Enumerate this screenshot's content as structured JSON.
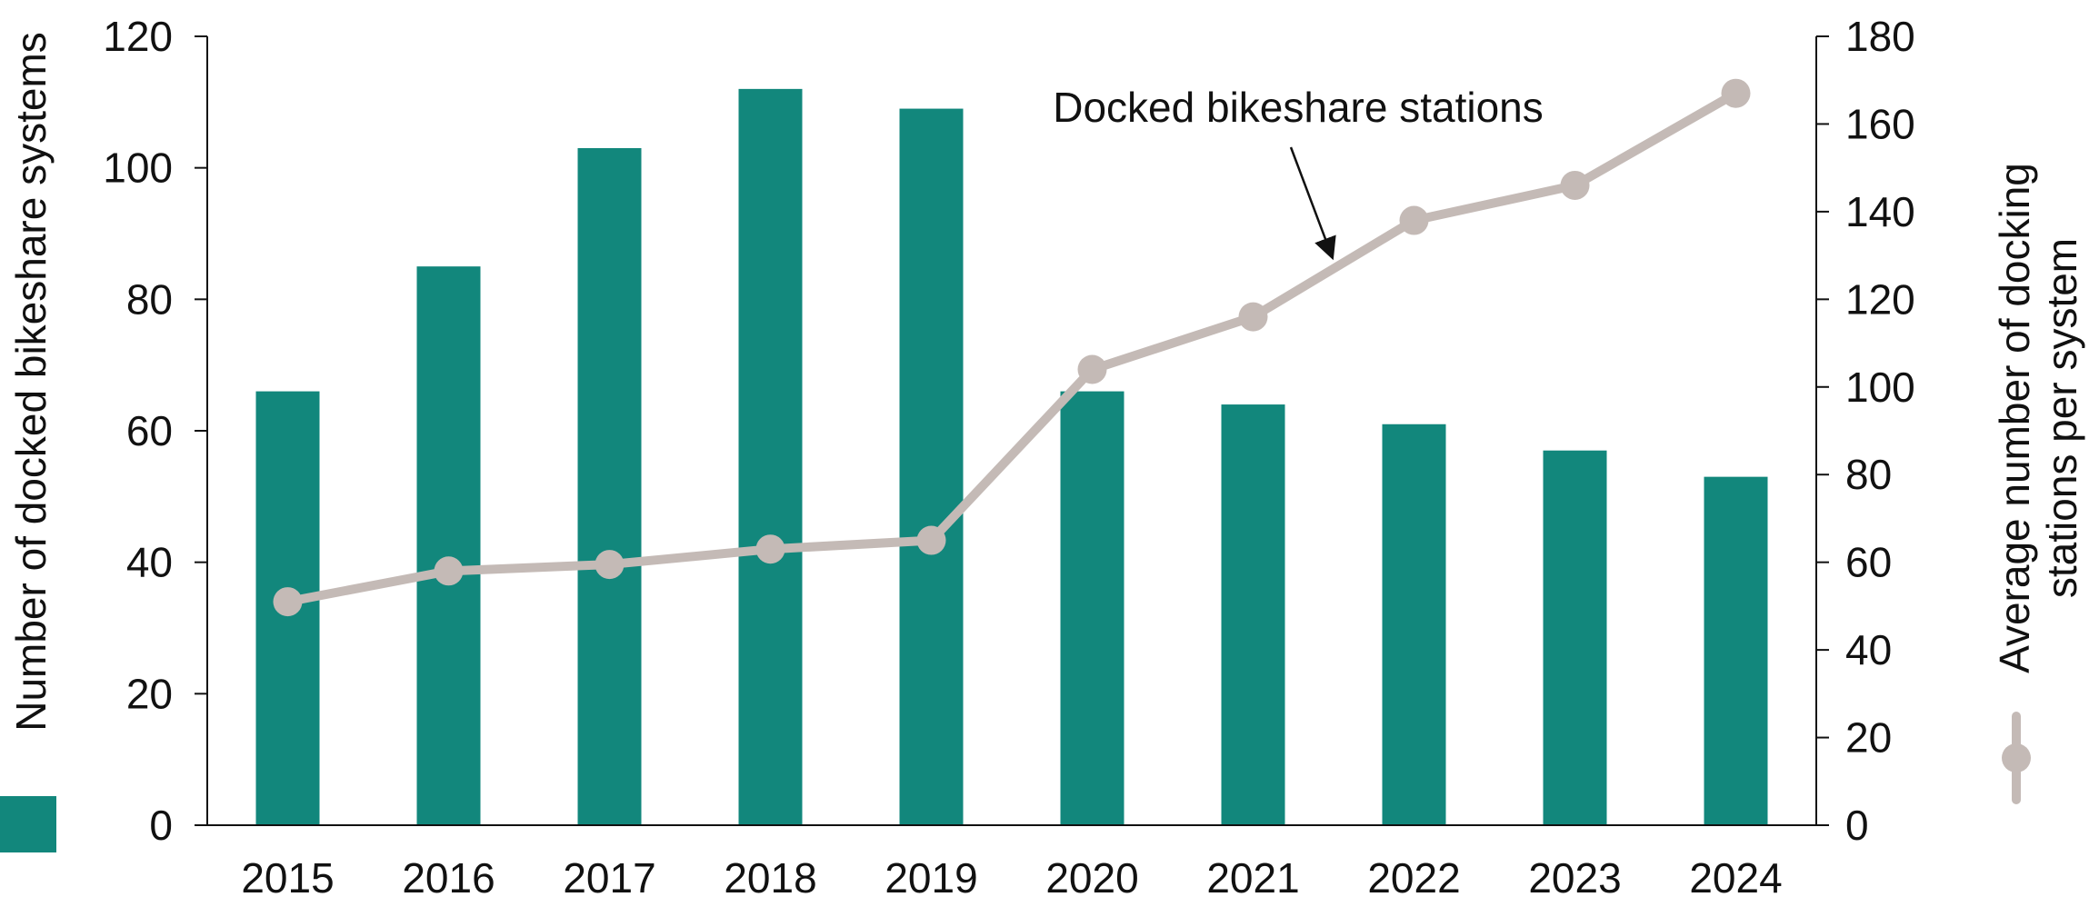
{
  "chart_data": {
    "type": "bar+line",
    "categories": [
      "2015",
      "2016",
      "2017",
      "2018",
      "2019",
      "2020",
      "2021",
      "2022",
      "2023",
      "2024"
    ],
    "series": [
      {
        "type": "bar",
        "axis": "left",
        "values": [
          66,
          85,
          103,
          112,
          109,
          66,
          64,
          61,
          57,
          53
        ],
        "color": "#12877c"
      },
      {
        "type": "line",
        "axis": "right",
        "name": "Docked bikeshare stations",
        "values": [
          51,
          58,
          59.5,
          63,
          65,
          104,
          116,
          138,
          146,
          167
        ],
        "color": "#c4bab6"
      }
    ],
    "y_left": {
      "label": "Number of docked bikeshare systems",
      "range": [
        0,
        120
      ],
      "ticks": [
        0,
        20,
        40,
        60,
        80,
        100,
        120
      ]
    },
    "y_right": {
      "label_line1": "Average number of docking",
      "label_line2": "stations per system",
      "range": [
        0,
        180
      ],
      "ticks": [
        0,
        20,
        40,
        60,
        80,
        100,
        120,
        140,
        160,
        180
      ]
    },
    "annotation": {
      "text": "Docked bikeshare stations",
      "points_to_index": 7
    },
    "grid": false,
    "legend": "swatches beside axis titles"
  }
}
